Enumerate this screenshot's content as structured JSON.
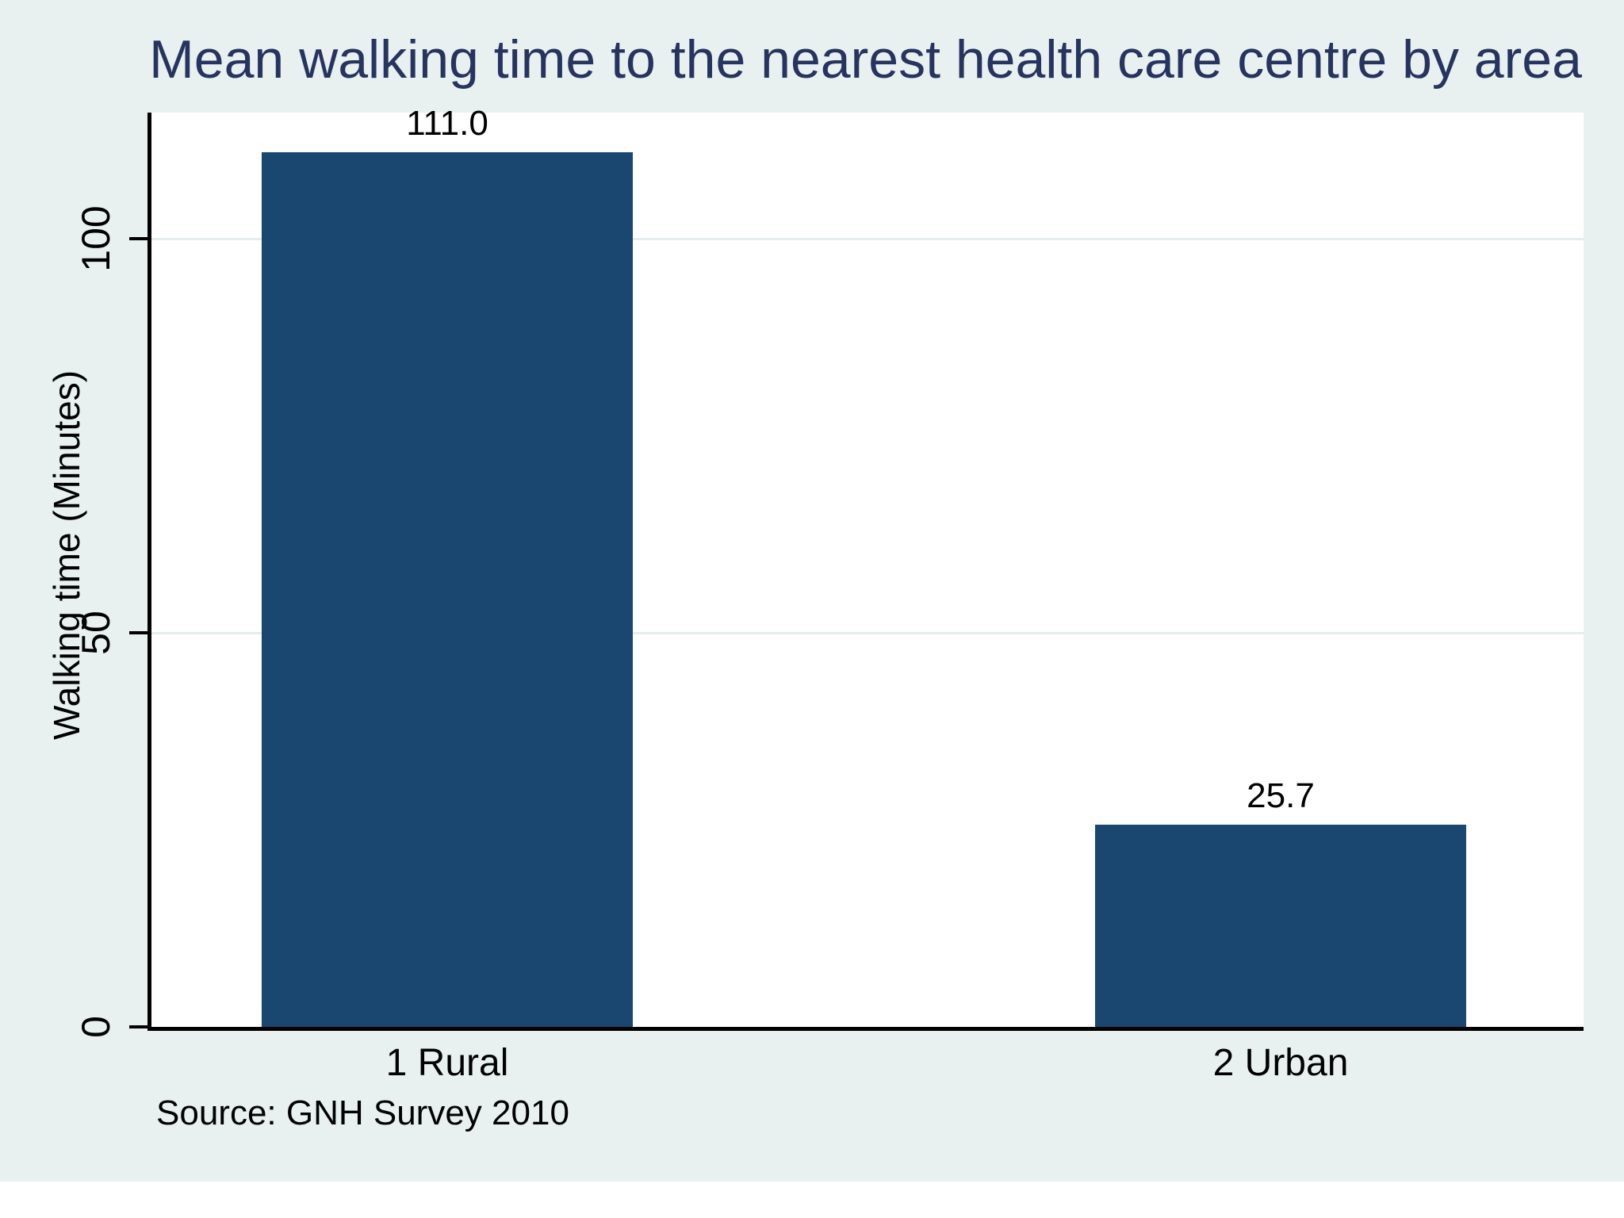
{
  "chart_data": {
    "type": "bar",
    "title": "Mean walking time to the nearest health care centre by area",
    "categories": [
      "1 Rural",
      "2 Urban"
    ],
    "values": [
      111.0,
      25.7
    ],
    "value_labels": [
      "111.0",
      "25.7"
    ],
    "xlabel": "",
    "ylabel": "Walking time (Minutes)",
    "yticks": [
      0,
      50,
      100
    ],
    "ytick_labels": [
      "0",
      "50",
      "100"
    ],
    "ylim": [
      0,
      116
    ],
    "grid": true,
    "legend_position": "none",
    "source_note": "Source: GNH Survey 2010"
  },
  "colors": {
    "background": "#E8F1F0",
    "plot_background": "#FFFFFF",
    "bar": "#1A476F",
    "title_text": "#283460",
    "axis_line": "#000000",
    "gridline": "#E4EEEF",
    "label_text": "#000000"
  }
}
